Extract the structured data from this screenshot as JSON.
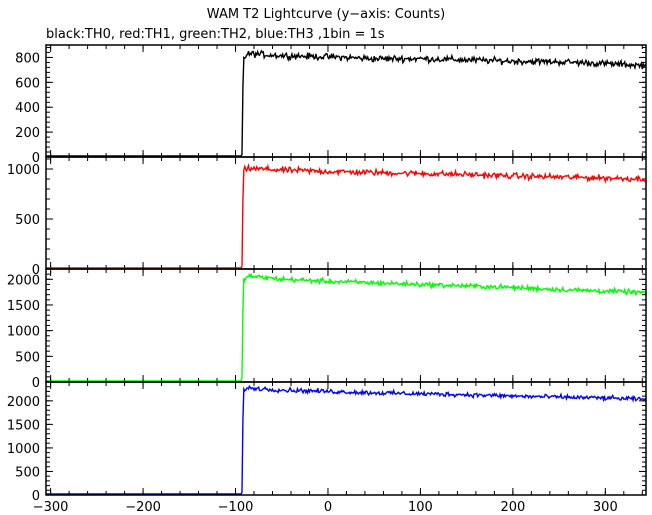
{
  "chart": {
    "title": "WAM T2 Lightcurve (y−axis: Counts)",
    "subtitle": "black:TH0, red:TH1, green:TH2, blue:TH3 ,1bin = 1s"
  },
  "chart_data": {
    "type": "line",
    "title": "WAM T2 Lightcurve (y−axis: Counts)",
    "subtitle": "black:TH0, red:TH1, green:TH2, blue:TH3 ,1bin = 1s",
    "xlim": [
      -305,
      344
    ],
    "x_ticks": [
      -300,
      -200,
      -100,
      0,
      100,
      200,
      300
    ],
    "x_tick_labels": [
      "−300",
      "−200",
      "−100",
      "0",
      "100",
      "200",
      "300"
    ],
    "onset_x": -92,
    "panels": [
      {
        "channel": "TH0",
        "color": "#000000",
        "ylim": [
          0,
          900
        ],
        "y_ticks": [
          0,
          200,
          400,
          600,
          800
        ],
        "y_tick_labels": [
          "0",
          "200",
          "400",
          "600",
          "800"
        ],
        "points": [
          [
            -305,
            0
          ],
          [
            -94,
            0
          ],
          [
            -93,
            20
          ],
          [
            -92,
            560
          ],
          [
            -91,
            800
          ],
          [
            -85,
            830
          ],
          [
            -50,
            815
          ],
          [
            0,
            805
          ],
          [
            50,
            790
          ],
          [
            100,
            790
          ],
          [
            150,
            780
          ],
          [
            200,
            770
          ],
          [
            250,
            765
          ],
          [
            300,
            750
          ],
          [
            344,
            735
          ]
        ],
        "noise": 22
      },
      {
        "channel": "TH1",
        "color": "#ff0000",
        "ylim": [
          0,
          1120
        ],
        "y_ticks": [
          0,
          500,
          1000
        ],
        "y_tick_labels": [
          "0",
          "500",
          "1000"
        ],
        "points": [
          [
            -305,
            5
          ],
          [
            -94,
            5
          ],
          [
            -93,
            30
          ],
          [
            -92,
            700
          ],
          [
            -91,
            990
          ],
          [
            -85,
            1005
          ],
          [
            -50,
            990
          ],
          [
            0,
            975
          ],
          [
            50,
            965
          ],
          [
            100,
            955
          ],
          [
            150,
            945
          ],
          [
            200,
            930
          ],
          [
            250,
            920
          ],
          [
            300,
            910
          ],
          [
            344,
            900
          ]
        ],
        "noise": 25
      },
      {
        "channel": "TH2",
        "color": "#00ff00",
        "ylim": [
          0,
          2200
        ],
        "y_ticks": [
          0,
          500,
          1000,
          1500,
          2000
        ],
        "y_tick_labels": [
          "0",
          "500",
          "1000",
          "1500",
          "2000"
        ],
        "points": [
          [
            -305,
            15
          ],
          [
            -94,
            15
          ],
          [
            -93,
            80
          ],
          [
            -92,
            1400
          ],
          [
            -91,
            2020
          ],
          [
            -85,
            2060
          ],
          [
            -50,
            2000
          ],
          [
            0,
            1960
          ],
          [
            50,
            1930
          ],
          [
            100,
            1900
          ],
          [
            150,
            1870
          ],
          [
            200,
            1840
          ],
          [
            250,
            1800
          ],
          [
            300,
            1770
          ],
          [
            344,
            1740
          ]
        ],
        "noise": 40
      },
      {
        "channel": "TH3",
        "color": "#0000ff",
        "ylim": [
          0,
          2400
        ],
        "y_ticks": [
          0,
          500,
          1000,
          1500,
          2000
        ],
        "y_tick_labels": [
          "0",
          "500",
          "1000",
          "1500",
          "2000"
        ],
        "points": [
          [
            -305,
            10
          ],
          [
            -94,
            10
          ],
          [
            -93,
            60
          ],
          [
            -92,
            1600
          ],
          [
            -91,
            2250
          ],
          [
            -85,
            2270
          ],
          [
            -50,
            2230
          ],
          [
            0,
            2200
          ],
          [
            50,
            2170
          ],
          [
            100,
            2150
          ],
          [
            150,
            2130
          ],
          [
            200,
            2100
          ],
          [
            250,
            2080
          ],
          [
            300,
            2060
          ],
          [
            344,
            2030
          ]
        ],
        "noise": 40
      }
    ],
    "grid": false
  }
}
